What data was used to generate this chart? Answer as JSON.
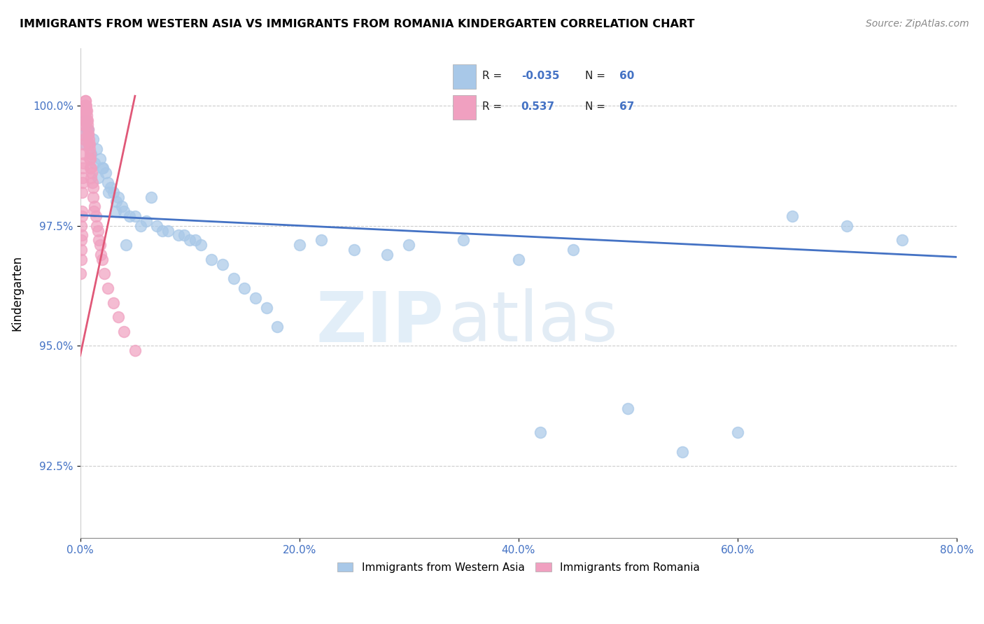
{
  "title": "IMMIGRANTS FROM WESTERN ASIA VS IMMIGRANTS FROM ROMANIA KINDERGARTEN CORRELATION CHART",
  "source": "Source: ZipAtlas.com",
  "ylabel": "Kindergarten",
  "xlim": [
    0.0,
    80.0
  ],
  "ylim": [
    91.0,
    101.2
  ],
  "yticks": [
    92.5,
    95.0,
    97.5,
    100.0
  ],
  "ytick_labels": [
    "92.5%",
    "95.0%",
    "97.5%",
    "100.0%"
  ],
  "xticks": [
    0.0,
    20.0,
    40.0,
    60.0,
    80.0
  ],
  "xtick_labels": [
    "0.0%",
    "20.0%",
    "40.0%",
    "60.0%",
    "80.0%"
  ],
  "blue_color": "#A8C8E8",
  "pink_color": "#F0A0C0",
  "trend_blue": "#4472C4",
  "trend_pink": "#E05878",
  "watermark_zip": "ZIP",
  "watermark_atlas": "atlas",
  "legend_label1": "Immigrants from Western Asia",
  "legend_label2": "Immigrants from Romania",
  "blue_trend_x0": 0.0,
  "blue_trend_y0": 97.72,
  "blue_trend_x1": 80.0,
  "blue_trend_y1": 96.85,
  "pink_trend_x0": 0.0,
  "pink_trend_y0": 94.8,
  "pink_trend_x1": 5.0,
  "pink_trend_y1": 100.2,
  "blue_x": [
    0.4,
    0.6,
    0.7,
    1.2,
    1.5,
    1.8,
    2.1,
    2.3,
    2.5,
    2.8,
    3.0,
    3.3,
    3.5,
    3.8,
    4.0,
    4.5,
    5.0,
    5.5,
    6.0,
    6.5,
    7.0,
    7.5,
    8.0,
    9.0,
    9.5,
    10.0,
    10.5,
    11.0,
    12.0,
    13.0,
    14.0,
    15.0,
    16.0,
    17.0,
    18.0,
    20.0,
    22.0,
    25.0,
    28.0,
    30.0,
    35.0,
    40.0,
    42.0,
    45.0,
    50.0,
    55.0,
    60.0,
    65.0,
    70.0,
    75.0,
    0.3,
    0.5,
    0.8,
    1.0,
    1.3,
    1.6,
    2.0,
    2.6,
    3.2,
    4.2
  ],
  "blue_y": [
    99.7,
    99.5,
    99.5,
    99.3,
    99.1,
    98.9,
    98.7,
    98.6,
    98.4,
    98.3,
    98.2,
    98.0,
    98.1,
    97.9,
    97.8,
    97.7,
    97.7,
    97.5,
    97.6,
    98.1,
    97.5,
    97.4,
    97.4,
    97.3,
    97.3,
    97.2,
    97.2,
    97.1,
    96.8,
    96.7,
    96.4,
    96.2,
    96.0,
    95.8,
    95.4,
    97.1,
    97.2,
    97.0,
    96.9,
    97.1,
    97.2,
    96.8,
    93.2,
    97.0,
    93.7,
    92.8,
    93.2,
    97.7,
    97.5,
    97.2,
    99.4,
    99.2,
    99.2,
    99.0,
    98.8,
    98.5,
    98.7,
    98.2,
    97.8,
    97.1
  ],
  "pink_x": [
    0.05,
    0.08,
    0.1,
    0.12,
    0.15,
    0.18,
    0.2,
    0.22,
    0.25,
    0.28,
    0.3,
    0.32,
    0.35,
    0.38,
    0.4,
    0.42,
    0.45,
    0.48,
    0.5,
    0.55,
    0.6,
    0.65,
    0.7,
    0.75,
    0.8,
    0.85,
    0.9,
    0.95,
    1.0,
    1.05,
    1.1,
    1.15,
    1.2,
    1.3,
    1.4,
    1.5,
    1.6,
    1.7,
    1.8,
    1.9,
    2.0,
    2.2,
    2.5,
    3.0,
    3.5,
    4.0,
    5.0,
    0.07,
    0.13,
    0.17,
    0.23,
    0.27,
    0.33,
    0.37,
    0.43,
    0.47,
    0.52,
    0.57,
    0.62,
    0.68,
    0.72,
    0.78,
    0.83,
    0.88,
    0.93,
    0.98,
    1.25
  ],
  "pink_y": [
    96.5,
    97.0,
    97.2,
    97.5,
    97.8,
    98.2,
    98.5,
    98.7,
    99.0,
    99.2,
    99.4,
    99.6,
    99.7,
    99.8,
    99.9,
    100.0,
    100.1,
    100.1,
    100.0,
    99.9,
    99.8,
    99.7,
    99.5,
    99.4,
    99.3,
    99.2,
    99.0,
    98.9,
    98.7,
    98.6,
    98.4,
    98.3,
    98.1,
    97.9,
    97.7,
    97.5,
    97.4,
    97.2,
    97.1,
    96.9,
    96.8,
    96.5,
    96.2,
    95.9,
    95.6,
    95.3,
    94.9,
    96.8,
    97.3,
    97.7,
    98.4,
    98.8,
    99.3,
    99.6,
    99.9,
    100.0,
    100.0,
    99.9,
    99.7,
    99.6,
    99.4,
    99.2,
    99.1,
    98.9,
    98.7,
    98.5,
    97.8
  ]
}
